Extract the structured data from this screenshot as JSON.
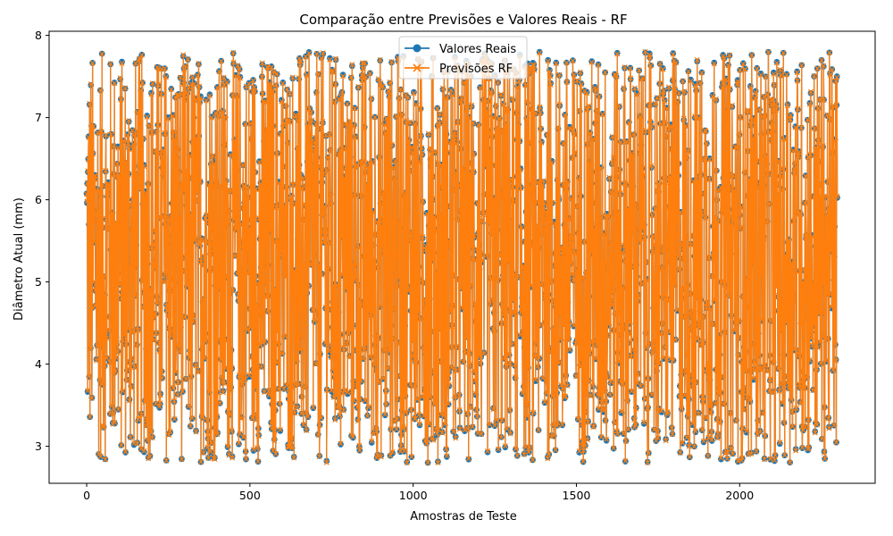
{
  "chart_data": {
    "type": "line",
    "title": "Comparação entre Previsões e Valores Reais - RF",
    "xlabel": "Amostras de Teste",
    "ylabel": "Diâmetro Atual (mm)",
    "xlim": [
      -115,
      2415
    ],
    "ylim": [
      2.55,
      8.05
    ],
    "xticks": [
      0,
      500,
      1000,
      1500,
      2000
    ],
    "yticks": [
      3,
      4,
      5,
      6,
      7,
      8
    ],
    "grid": false,
    "legend_position": "top-center",
    "n_samples": 2300,
    "value_range": [
      2.8,
      7.8
    ],
    "series": [
      {
        "name": "Valores Reais",
        "marker": "circle",
        "color": "#1f77b4"
      },
      {
        "name": "Previsões RF",
        "marker": "x",
        "color": "#ff7f0e"
      }
    ]
  }
}
